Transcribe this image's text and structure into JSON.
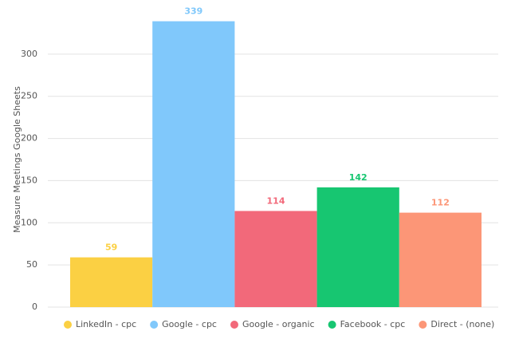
{
  "chart_data": {
    "type": "bar",
    "y_label": "Measure Meetings Google Sheets",
    "series": [
      {
        "name": "LinkedIn - cpc",
        "color": "#fbd043",
        "values": [
          59
        ]
      },
      {
        "name": "Google - cpc",
        "color": "#80c8fb",
        "values": [
          339
        ]
      },
      {
        "name": "Google - organic",
        "color": "#f2697a",
        "values": [
          114
        ]
      },
      {
        "name": "Facebook - cpc",
        "color": "#17c671",
        "values": [
          142
        ]
      },
      {
        "name": "Direct - (none)",
        "color": "#fc9677",
        "values": [
          112
        ]
      }
    ],
    "ylim": [
      0,
      350
    ],
    "yticks": [
      0,
      50,
      100,
      150,
      200,
      250,
      300
    ],
    "grid": true,
    "legend": "bottom"
  }
}
